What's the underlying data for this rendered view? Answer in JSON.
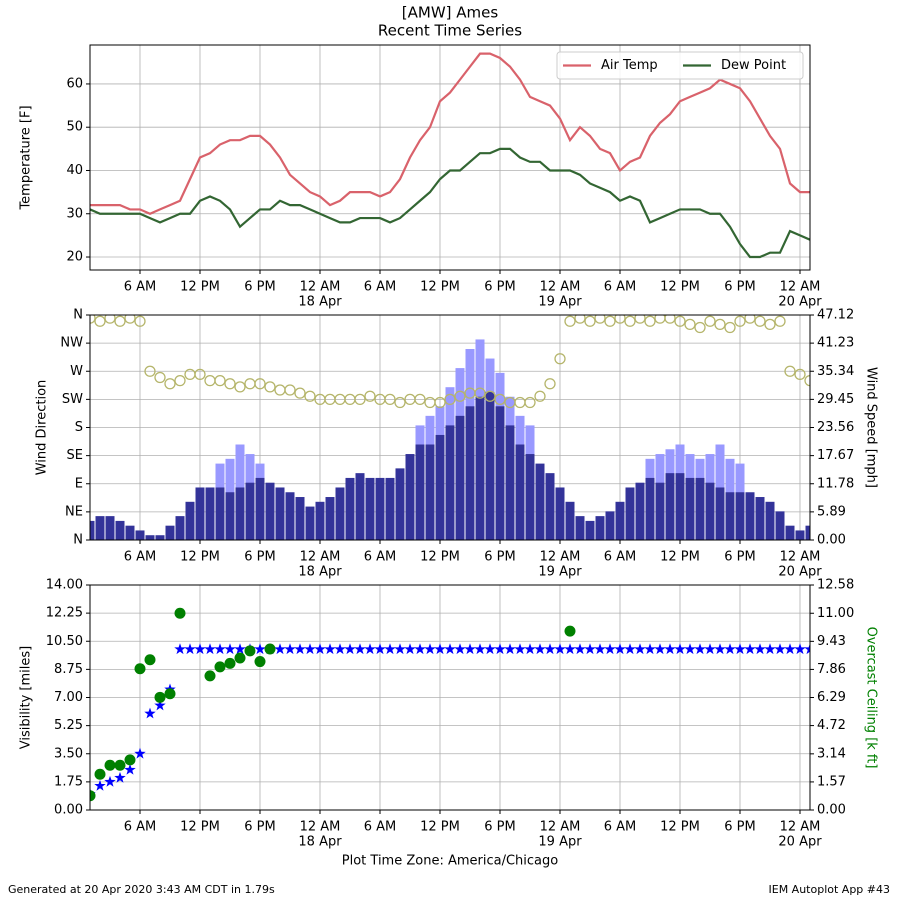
{
  "title": "[AMW] Ames",
  "subtitle": "Recent Time Series",
  "footer": {
    "left": "Generated at 20 Apr 2020 3:43 AM CDT in 1.79s",
    "right": "IEM Autoplot App #43"
  },
  "chart_data": [
    {
      "type": "line",
      "ylabel": "Temperature [F]",
      "grid": true,
      "legend": "upper right",
      "x": [
        1,
        2,
        3,
        4,
        5,
        6,
        7,
        8,
        9,
        10,
        11,
        12,
        13,
        14,
        15,
        16,
        17,
        18,
        19,
        20,
        21,
        22,
        23,
        24,
        25,
        26,
        27,
        28,
        29,
        30,
        31,
        32,
        33,
        34,
        35,
        36,
        37,
        38,
        39,
        40,
        41,
        42,
        43,
        44,
        45,
        46,
        47,
        48,
        49,
        50,
        51,
        52,
        53,
        54,
        55,
        56,
        57,
        58,
        59,
        60,
        61,
        62,
        63,
        64,
        65,
        66,
        67,
        68,
        69,
        70,
        71,
        72,
        73
      ],
      "xlim": [
        1,
        73
      ],
      "xticks": [
        {
          "value": 6,
          "label": "6 AM"
        },
        {
          "value": 12,
          "label": "12 PM"
        },
        {
          "value": 18,
          "label": "6 PM"
        },
        {
          "value": 24,
          "label": "12 AM",
          "date": "18 Apr"
        },
        {
          "value": 30,
          "label": "6 AM"
        },
        {
          "value": 36,
          "label": "12 PM"
        },
        {
          "value": 42,
          "label": "6 PM"
        },
        {
          "value": 48,
          "label": "12 AM",
          "date": "19 Apr"
        },
        {
          "value": 54,
          "label": "6 AM"
        },
        {
          "value": 60,
          "label": "12 PM"
        },
        {
          "value": 66,
          "label": "6 PM"
        },
        {
          "value": 72,
          "label": "12 AM",
          "date": "20 Apr"
        }
      ],
      "ylim": [
        17,
        69
      ],
      "yticks": [
        20,
        30,
        40,
        50,
        60
      ],
      "series": [
        {
          "name": "Air Temp",
          "type": "line",
          "color": "#d9626b",
          "values": [
            32,
            32,
            32,
            32,
            31,
            31,
            30,
            31,
            32,
            33,
            38,
            43,
            44,
            46,
            47,
            47,
            48,
            48,
            46,
            43,
            39,
            37,
            35,
            34,
            32,
            33,
            35,
            35,
            35,
            34,
            35,
            38,
            43,
            47,
            50,
            56,
            58,
            61,
            64,
            67,
            67,
            66,
            64,
            61,
            57,
            56,
            55,
            52,
            47,
            50,
            48,
            45,
            44,
            40,
            42,
            43,
            48,
            51,
            53,
            56,
            57,
            58,
            59,
            61,
            60,
            59,
            56,
            52,
            48,
            45,
            37,
            35,
            35
          ]
        },
        {
          "name": "Dew Point",
          "type": "line",
          "color": "#336633",
          "values": [
            31,
            30,
            30,
            30,
            30,
            30,
            29,
            28,
            29,
            30,
            30,
            33,
            34,
            33,
            31,
            27,
            29,
            31,
            31,
            33,
            32,
            32,
            31,
            30,
            29,
            28,
            28,
            29,
            29,
            29,
            28,
            29,
            31,
            33,
            35,
            38,
            40,
            40,
            42,
            44,
            44,
            45,
            45,
            43,
            42,
            42,
            40,
            40,
            40,
            39,
            37,
            36,
            35,
            33,
            34,
            33,
            28,
            29,
            30,
            31,
            31,
            31,
            30,
            30,
            27,
            23,
            20,
            20,
            21,
            21,
            26,
            25,
            24
          ]
        }
      ]
    },
    {
      "type": "combo",
      "ylabel": "Wind Direction",
      "y2label": "Wind Speed [mph]",
      "grid": true,
      "x": [
        1,
        2,
        3,
        4,
        5,
        6,
        7,
        8,
        9,
        10,
        11,
        12,
        13,
        14,
        15,
        16,
        17,
        18,
        19,
        20,
        21,
        22,
        23,
        24,
        25,
        26,
        27,
        28,
        29,
        30,
        31,
        32,
        33,
        34,
        35,
        36,
        37,
        38,
        39,
        40,
        41,
        42,
        43,
        44,
        45,
        46,
        47,
        48,
        49,
        50,
        51,
        52,
        53,
        54,
        55,
        56,
        57,
        58,
        59,
        60,
        61,
        62,
        63,
        64,
        65,
        66,
        67,
        68,
        69,
        70,
        71,
        72,
        73
      ],
      "xlim": [
        1,
        73
      ],
      "xticks": [
        {
          "value": 6,
          "label": "6 AM"
        },
        {
          "value": 12,
          "label": "12 PM"
        },
        {
          "value": 18,
          "label": "6 PM"
        },
        {
          "value": 24,
          "label": "12 AM",
          "date": "18 Apr"
        },
        {
          "value": 30,
          "label": "6 AM"
        },
        {
          "value": 36,
          "label": "12 PM"
        },
        {
          "value": 42,
          "label": "6 PM"
        },
        {
          "value": 48,
          "label": "12 AM",
          "date": "19 Apr"
        },
        {
          "value": 54,
          "label": "6 AM"
        },
        {
          "value": 60,
          "label": "12 PM"
        },
        {
          "value": 66,
          "label": "6 PM"
        },
        {
          "value": 72,
          "label": "12 AM",
          "date": "20 Apr"
        }
      ],
      "ylim": [
        0,
        360
      ],
      "yticks": [
        {
          "value": 0,
          "label": "N"
        },
        {
          "value": 45,
          "label": "NE"
        },
        {
          "value": 90,
          "label": "E"
        },
        {
          "value": 135,
          "label": "SE"
        },
        {
          "value": 180,
          "label": "S"
        },
        {
          "value": 225,
          "label": "SW"
        },
        {
          "value": 270,
          "label": "W"
        },
        {
          "value": 315,
          "label": "NW"
        },
        {
          "value": 360,
          "label": "N"
        }
      ],
      "y2lim": [
        0,
        47.12
      ],
      "y2ticks": [
        {
          "value": 0,
          "label": "0.00"
        },
        5.89,
        11.78,
        17.67,
        23.56,
        29.45,
        35.34,
        41.23,
        47.12
      ],
      "series": [
        {
          "type": "bar",
          "axis": "y2",
          "color": "#9999ff",
          "values": [
            null,
            null,
            null,
            null,
            null,
            null,
            null,
            null,
            null,
            null,
            null,
            null,
            null,
            16,
            17,
            20,
            18,
            16,
            null,
            null,
            null,
            null,
            null,
            null,
            null,
            null,
            null,
            null,
            null,
            null,
            null,
            null,
            null,
            24,
            26,
            28,
            32,
            36,
            40,
            42,
            38,
            35,
            30,
            26,
            24,
            null,
            null,
            null,
            null,
            null,
            null,
            null,
            null,
            null,
            null,
            null,
            17,
            18,
            19,
            20,
            18,
            17,
            18,
            20,
            17,
            16,
            null,
            null,
            null,
            null,
            null,
            null,
            null
          ]
        },
        {
          "type": "bar",
          "axis": "y2",
          "color": "#333399",
          "values": [
            4,
            5,
            5,
            4,
            3,
            2,
            1,
            1,
            3,
            5,
            8,
            11,
            11,
            11,
            10,
            11,
            12,
            13,
            12,
            11,
            10,
            9,
            7,
            8,
            9,
            11,
            13,
            14,
            13,
            13,
            13,
            15,
            18,
            20,
            20,
            22,
            24,
            26,
            28,
            30,
            31,
            28,
            24,
            20,
            18,
            16,
            14,
            11,
            8,
            5,
            4,
            5,
            6,
            8,
            11,
            12,
            13,
            12,
            14,
            14,
            13,
            13,
            12,
            11,
            10,
            10,
            10,
            9,
            8,
            6,
            3,
            2,
            3
          ]
        },
        {
          "type": "scatter",
          "marker": "open-circle",
          "color": "#b5b56b",
          "values": [
            355,
            350,
            355,
            350,
            355,
            350,
            270,
            260,
            250,
            255,
            265,
            265,
            255,
            255,
            250,
            245,
            250,
            250,
            245,
            240,
            240,
            235,
            230,
            225,
            225,
            225,
            225,
            225,
            230,
            225,
            225,
            220,
            225,
            225,
            220,
            220,
            225,
            230,
            235,
            235,
            230,
            225,
            220,
            220,
            220,
            230,
            250,
            290,
            350,
            355,
            350,
            355,
            350,
            355,
            350,
            355,
            350,
            355,
            355,
            350,
            345,
            340,
            350,
            345,
            340,
            350,
            355,
            350,
            345,
            350,
            270,
            265,
            255
          ]
        }
      ]
    },
    {
      "type": "scatter",
      "ylabel": "Visibility [miles]",
      "y2label": "Overcast Ceiling [k ft]",
      "y2label_color": "green",
      "xlabel": "Plot Time Zone: America/Chicago",
      "grid": true,
      "x": [
        1,
        2,
        3,
        4,
        5,
        6,
        7,
        8,
        9,
        10,
        11,
        12,
        13,
        14,
        15,
        16,
        17,
        18,
        19,
        20,
        21,
        22,
        23,
        24,
        25,
        26,
        27,
        28,
        29,
        30,
        31,
        32,
        33,
        34,
        35,
        36,
        37,
        38,
        39,
        40,
        41,
        42,
        43,
        44,
        45,
        46,
        47,
        48,
        49,
        50,
        51,
        52,
        53,
        54,
        55,
        56,
        57,
        58,
        59,
        60,
        61,
        62,
        63,
        64,
        65,
        66,
        67,
        68,
        69,
        70,
        71,
        72,
        73
      ],
      "xlim": [
        1,
        73
      ],
      "xticks": [
        {
          "value": 6,
          "label": "6 AM"
        },
        {
          "value": 12,
          "label": "12 PM"
        },
        {
          "value": 18,
          "label": "6 PM"
        },
        {
          "value": 24,
          "label": "12 AM",
          "date": "18 Apr"
        },
        {
          "value": 30,
          "label": "6 AM"
        },
        {
          "value": 36,
          "label": "12 PM"
        },
        {
          "value": 42,
          "label": "6 PM"
        },
        {
          "value": 48,
          "label": "12 AM",
          "date": "19 Apr"
        },
        {
          "value": 54,
          "label": "6 AM"
        },
        {
          "value": 60,
          "label": "12 PM"
        },
        {
          "value": 66,
          "label": "6 PM"
        },
        {
          "value": 72,
          "label": "12 AM",
          "date": "20 Apr"
        }
      ],
      "ylim": [
        0,
        14
      ],
      "yticks": [
        {
          "value": 0,
          "label": "0.00"
        },
        1.75,
        {
          "value": 3.5,
          "label": "3.50"
        },
        5.25,
        {
          "value": 7,
          "label": "7.00"
        },
        8.75,
        {
          "value": 10.5,
          "label": "10.50"
        },
        12.25,
        {
          "value": 14,
          "label": "14.00"
        }
      ],
      "y2lim": [
        0,
        12.58
      ],
      "y2ticks": [
        {
          "value": 0,
          "label": "0.00"
        },
        1.57,
        3.14,
        4.72,
        6.29,
        7.86,
        9.43,
        {
          "value": 11,
          "label": "11.00"
        },
        12.58
      ],
      "series": [
        {
          "type": "scatter",
          "marker": "star",
          "color": "#0000ff",
          "values": [
            1,
            1.5,
            1.75,
            2,
            2.5,
            3.5,
            6,
            6.5,
            7.5,
            10,
            10,
            10,
            10,
            10,
            10,
            10,
            10,
            10,
            10,
            10,
            10,
            10,
            10,
            10,
            10,
            10,
            10,
            10,
            10,
            10,
            10,
            10,
            10,
            10,
            10,
            10,
            10,
            10,
            10,
            10,
            10,
            10,
            10,
            10,
            10,
            10,
            10,
            10,
            10,
            10,
            10,
            10,
            10,
            10,
            10,
            10,
            10,
            10,
            10,
            10,
            10,
            10,
            10,
            10,
            10,
            10,
            10,
            10,
            10,
            10,
            10,
            10,
            10
          ]
        },
        {
          "type": "scatter",
          "marker": "circle",
          "axis": "y2",
          "color": "#008000",
          "values": [
            0.8,
            2.0,
            2.5,
            2.5,
            2.8,
            7.9,
            8.4,
            6.3,
            6.5,
            11.0,
            null,
            null,
            7.5,
            8.0,
            8.2,
            8.5,
            8.9,
            8.3,
            9.0,
            null,
            null,
            null,
            null,
            null,
            null,
            null,
            null,
            null,
            null,
            null,
            null,
            null,
            null,
            null,
            null,
            null,
            null,
            null,
            null,
            null,
            null,
            null,
            null,
            null,
            null,
            null,
            null,
            null,
            10.0,
            null,
            null,
            null,
            null,
            null,
            null,
            null,
            null,
            null,
            null,
            null,
            null,
            null,
            null,
            null,
            null,
            null,
            null,
            null,
            null,
            null,
            null,
            null,
            null
          ]
        }
      ]
    }
  ]
}
